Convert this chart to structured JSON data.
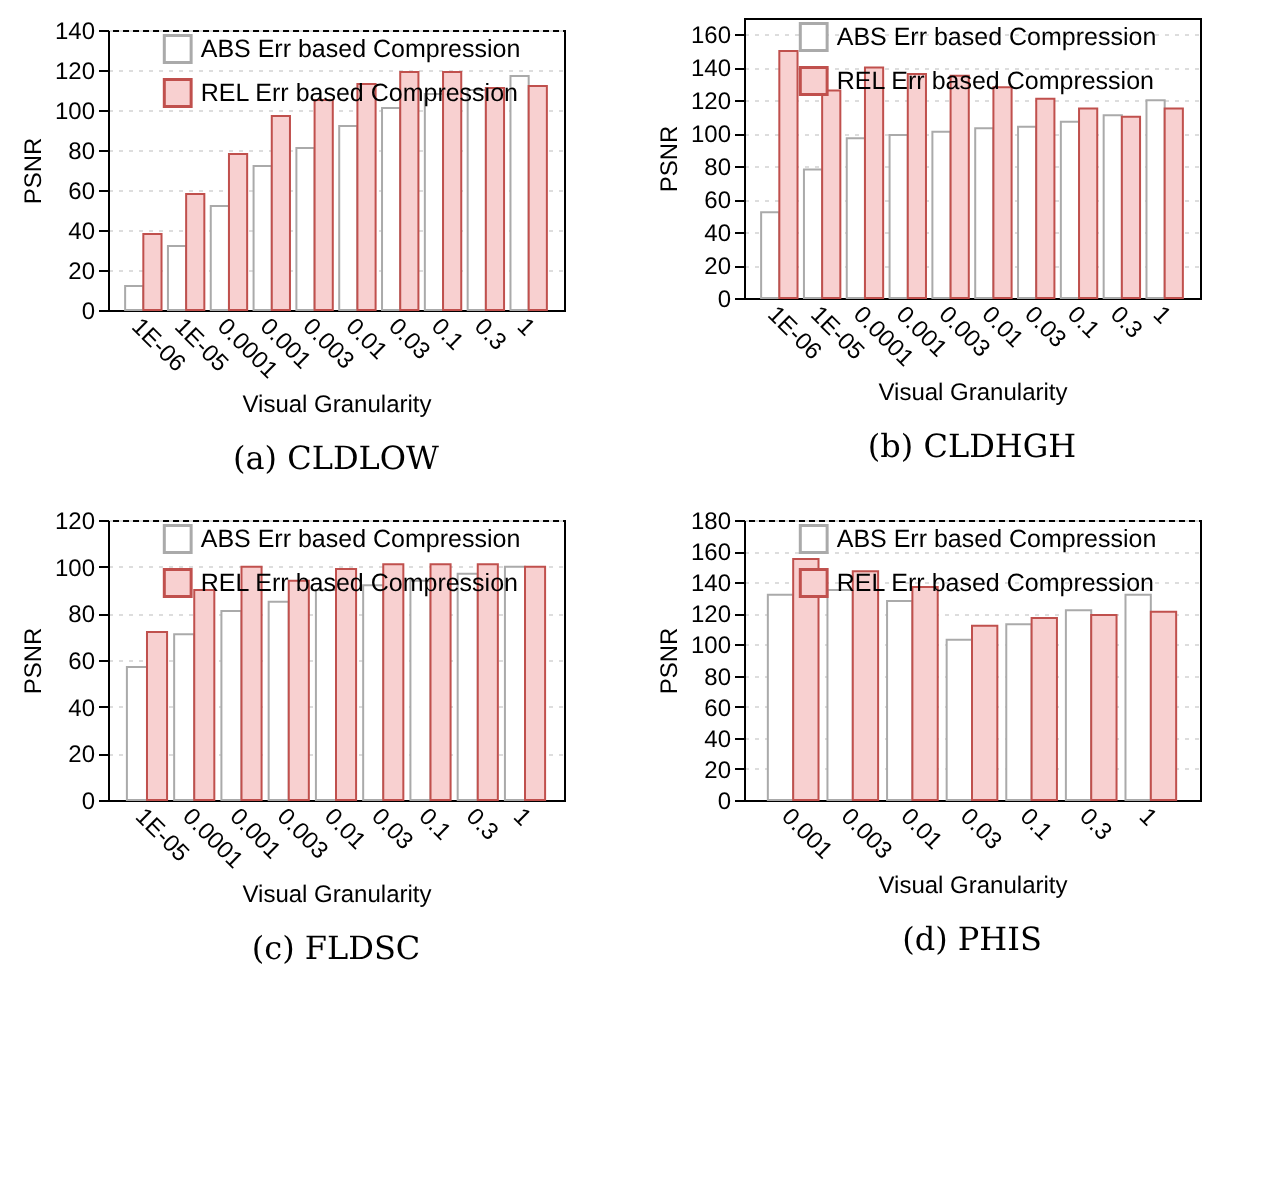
{
  "chart_data": [
    {
      "type": "bar",
      "title": "(a) CLDLOW",
      "xlabel": "Visual Granularity",
      "ylabel": "PSNR",
      "categories": [
        "1E-06",
        "1E-05",
        "0.0001",
        "0.001",
        "0.003",
        "0.01",
        "0.03",
        "0.1",
        "0.3",
        "1"
      ],
      "series": [
        {
          "name": "ABS Err based Compression",
          "color": "#ffffff",
          "values": [
            12,
            32,
            52,
            72,
            81,
            92,
            101,
            108,
            110,
            117
          ]
        },
        {
          "name": "REL Err based Compression",
          "color": "#f8d0d0",
          "values": [
            38,
            58,
            78,
            97,
            105,
            113,
            119,
            119,
            111,
            112
          ]
        }
      ],
      "ylim": [
        0,
        140
      ],
      "yticks": [
        0,
        20,
        40,
        60,
        80,
        100,
        120,
        140
      ],
      "grid": "y",
      "legend": "top"
    },
    {
      "type": "bar",
      "title": "(b) CLDHGH",
      "xlabel": "Visual Granularity",
      "ylabel": "PSNR",
      "categories": [
        "1E-06",
        "1E-05",
        "0.0001",
        "0.001",
        "0.003",
        "0.01",
        "0.03",
        "0.1",
        "0.3",
        "1"
      ],
      "series": [
        {
          "name": "ABS Err based Compression",
          "color": "#ffffff",
          "values": [
            52,
            78,
            97,
            99,
            101,
            103,
            104,
            107,
            111,
            120
          ]
        },
        {
          "name": "REL Err based Compression",
          "color": "#f8d0d0",
          "values": [
            150,
            126,
            140,
            136,
            135,
            128,
            121,
            115,
            110,
            115
          ]
        }
      ],
      "ylim": [
        0,
        170
      ],
      "yticks": [
        0,
        20,
        40,
        60,
        80,
        100,
        120,
        140,
        160
      ],
      "grid": "y",
      "legend": "top"
    },
    {
      "type": "bar",
      "title": "(c) FLDSC",
      "xlabel": "Visual Granularity",
      "ylabel": "PSNR",
      "categories": [
        "1E-05",
        "0.0001",
        "0.001",
        "0.003",
        "0.01",
        "0.03",
        "0.1",
        "0.3",
        "1"
      ],
      "series": [
        {
          "name": "ABS Err based Compression",
          "color": "#ffffff",
          "values": [
            57,
            71,
            81,
            85,
            90,
            92,
            94,
            97,
            100
          ]
        },
        {
          "name": "REL Err based Compression",
          "color": "#f8d0d0",
          "values": [
            72,
            90,
            100,
            94,
            99,
            101,
            101,
            101,
            100
          ]
        }
      ],
      "ylim": [
        0,
        120
      ],
      "yticks": [
        0,
        20,
        40,
        60,
        80,
        100,
        120
      ],
      "grid": "y",
      "legend": "top"
    },
    {
      "type": "bar",
      "title": "(d) PHIS",
      "xlabel": "Visual Granularity",
      "ylabel": "PSNR",
      "categories": [
        "0.001",
        "0.003",
        "0.01",
        "0.03",
        "0.1",
        "0.3",
        "1"
      ],
      "series": [
        {
          "name": "ABS Err based Compression",
          "color": "#ffffff",
          "values": [
            132,
            135,
            128,
            103,
            113,
            122,
            132
          ]
        },
        {
          "name": "REL Err based Compression",
          "color": "#f8d0d0",
          "values": [
            155,
            147,
            137,
            112,
            117,
            119,
            121
          ]
        }
      ],
      "ylim": [
        0,
        180
      ],
      "yticks": [
        0,
        20,
        40,
        60,
        80,
        100,
        120,
        140,
        160,
        180
      ],
      "grid": "y",
      "legend": "top"
    }
  ]
}
